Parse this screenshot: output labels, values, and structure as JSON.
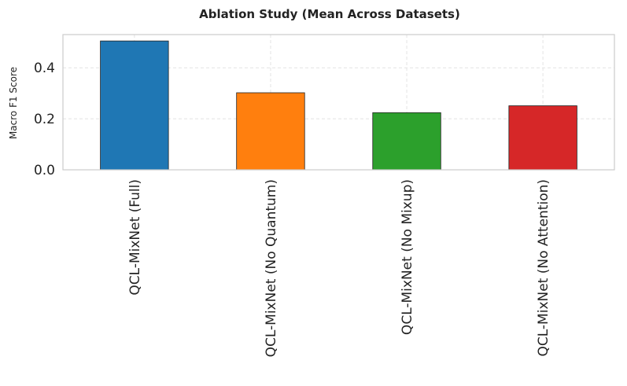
{
  "chart_data": {
    "type": "bar",
    "title": "Ablation Study (Mean Across Datasets)",
    "xlabel": "",
    "ylabel": "Macro F1 Score",
    "categories": [
      "QCL-MixNet (Full)",
      "QCL-MixNet (No Quantum)",
      "QCL-MixNet (No Mixup)",
      "QCL-MixNet (No Attention)"
    ],
    "values": [
      0.505,
      0.302,
      0.224,
      0.251
    ],
    "colors": [
      "#1f77b4",
      "#ff7f0e",
      "#2ca02c",
      "#d62728"
    ],
    "ylim": [
      0,
      0.53
    ],
    "yticks": [
      0.0,
      0.2,
      0.4
    ],
    "ytick_labels": [
      "0.0",
      "0.2",
      "0.4"
    ],
    "grid": true,
    "legend": "none"
  }
}
